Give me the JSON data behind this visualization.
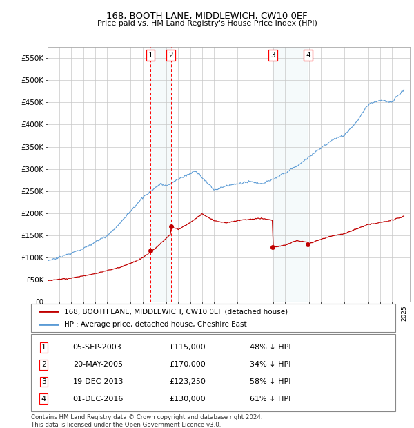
{
  "title": "168, BOOTH LANE, MIDDLEWICH, CW10 0EF",
  "subtitle": "Price paid vs. HM Land Registry's House Price Index (HPI)",
  "hpi_color": "#5b9bd5",
  "price_color": "#c00000",
  "background_color": "#ffffff",
  "plot_bg_color": "#ffffff",
  "grid_color": "#c8c8c8",
  "ylim": [
    0,
    575000
  ],
  "yticks": [
    0,
    50000,
    100000,
    150000,
    200000,
    250000,
    300000,
    350000,
    400000,
    450000,
    500000,
    550000
  ],
  "ytick_labels": [
    "£0",
    "£50K",
    "£100K",
    "£150K",
    "£200K",
    "£250K",
    "£300K",
    "£350K",
    "£400K",
    "£450K",
    "£500K",
    "£550K"
  ],
  "transactions": [
    {
      "num": 1,
      "date": "05-SEP-2003",
      "price": 115000,
      "pct": "48%",
      "x_approx": 2003.67
    },
    {
      "num": 2,
      "date": "20-MAY-2005",
      "price": 170000,
      "pct": "34%",
      "x_approx": 2005.38
    },
    {
      "num": 3,
      "date": "19-DEC-2013",
      "price": 123250,
      "pct": "58%",
      "x_approx": 2013.96
    },
    {
      "num": 4,
      "date": "01-DEC-2016",
      "price": 130000,
      "pct": "61%",
      "x_approx": 2016.92
    }
  ],
  "legend_line1": "168, BOOTH LANE, MIDDLEWICH, CW10 0EF (detached house)",
  "legend_line2": "HPI: Average price, detached house, Cheshire East",
  "footer": "Contains HM Land Registry data © Crown copyright and database right 2024.\nThis data is licensed under the Open Government Licence v3.0.",
  "xlim": [
    1995.0,
    2025.5
  ],
  "table_rows": [
    [
      "1",
      "05-SEP-2003",
      "£115,000",
      "48% ↓ HPI"
    ],
    [
      "2",
      "20-MAY-2005",
      "£170,000",
      "34% ↓ HPI"
    ],
    [
      "3",
      "19-DEC-2013",
      "£123,250",
      "58% ↓ HPI"
    ],
    [
      "4",
      "01-DEC-2016",
      "£130,000",
      "61% ↓ HPI"
    ]
  ]
}
